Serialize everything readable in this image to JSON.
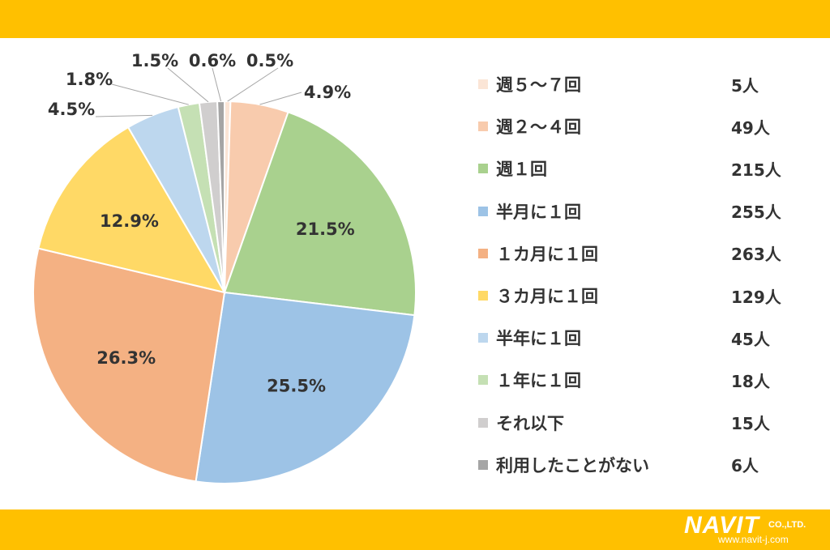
{
  "chart_data": {
    "type": "pie",
    "categories": [
      "週５～７回",
      "週２～４回",
      "週１回",
      "半月に１回",
      "１カ月に１回",
      "３カ月に１回",
      "半年に１回",
      "１年に１回",
      "それ以下",
      "利用したことがない"
    ],
    "counts": [
      "5人",
      "49人",
      "215人",
      "255人",
      "263人",
      "129人",
      "45人",
      "18人",
      "15人",
      "6人"
    ],
    "values": [
      0.5,
      4.9,
      21.5,
      25.5,
      26.3,
      12.9,
      4.5,
      1.8,
      1.5,
      0.6
    ],
    "labels": [
      "0.5%",
      "4.9%",
      "21.5%",
      "25.5%",
      "26.3%",
      "12.9%",
      "4.5%",
      "1.8%",
      "1.5%",
      "0.6%"
    ],
    "colors": [
      "#FBE5D6",
      "#F8CBAD",
      "#A9D18E",
      "#9DC3E6",
      "#F4B183",
      "#FFD966",
      "#BDD7EE",
      "#C5E0B4",
      "#D0CECE",
      "#A5A5A5"
    ],
    "legend_position": "right"
  },
  "brand": {
    "band_color": "#FFC000",
    "logo_text": "NAVIT",
    "logo_suffix": "CO.,LTD.",
    "logo_url": "www.navit-j.com"
  }
}
